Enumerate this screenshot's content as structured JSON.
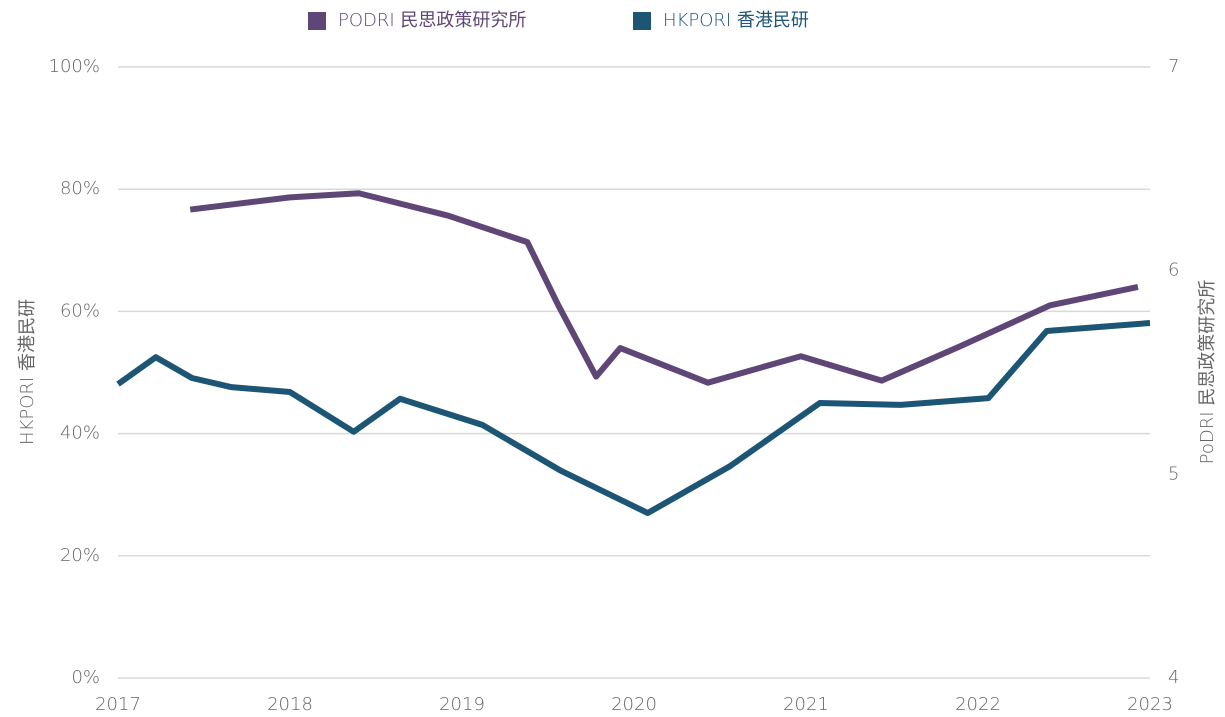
{
  "chart_data": {
    "type": "line",
    "y_label": "HKPORI 香港民研",
    "y2_label": "PoDRI 民思政策研究所",
    "xlim": [
      2017,
      2023
    ],
    "xticks": [
      2017,
      2018,
      2019,
      2020,
      2021,
      2022,
      2023
    ],
    "ylim": [
      0,
      100
    ],
    "yticks": [
      {
        "value": 0,
        "label": "0%"
      },
      {
        "value": 20,
        "label": "20%"
      },
      {
        "value": 40,
        "label": "40%"
      },
      {
        "value": 60,
        "label": "60%"
      },
      {
        "value": 80,
        "label": "80%"
      },
      {
        "value": 100,
        "label": "100%"
      }
    ],
    "y2lim": [
      4,
      7
    ],
    "y2ticks": [
      4,
      5,
      6,
      7
    ],
    "grid": true,
    "legend": "top",
    "series": [
      {
        "name": "PODRI 民思政策研究所",
        "color": "#5e4677",
        "axis": "y2",
        "x": [
          2017.42,
          2018.0,
          2018.4,
          2018.92,
          2019.38,
          2019.56,
          2019.78,
          2019.92,
          2020.43,
          2020.97,
          2021.44,
          2021.9,
          2022.42,
          2022.93
        ],
        "values": [
          6.3,
          6.36,
          6.38,
          6.27,
          6.14,
          5.83,
          5.48,
          5.62,
          5.45,
          5.58,
          5.46,
          5.63,
          5.83,
          5.92
        ]
      },
      {
        "name": "HKPORI  香港民研",
        "color": "#1d5575",
        "axis": "y",
        "x": [
          2017.0,
          2017.22,
          2017.43,
          2017.66,
          2018.0,
          2018.37,
          2018.64,
          2019.12,
          2019.57,
          2020.08,
          2020.56,
          2021.08,
          2021.55,
          2022.06,
          2022.4,
          2023.0
        ],
        "values": [
          48.1,
          52.5,
          49.1,
          47.6,
          46.8,
          40.3,
          45.7,
          41.4,
          34.0,
          27.0,
          34.7,
          45.0,
          44.7,
          45.8,
          56.8,
          58.1
        ]
      }
    ]
  }
}
